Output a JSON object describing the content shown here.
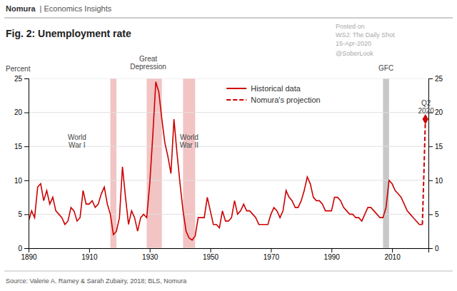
{
  "chart_data": {
    "type": "line",
    "title": "Fig. 2: Unemployment rate",
    "header": [
      "Nomura",
      "| Economics Insights"
    ],
    "ylabel": "Percent",
    "source": "Source: Valerie A. Ramey & Sarah Zubairy, 2018; BLS, Nomura",
    "watermark": [
      "Posted on",
      "WSJ: The Daily Shot",
      "15-Apr-2020",
      "@SoberLook"
    ],
    "xlim": [
      1890,
      2022
    ],
    "ylim": [
      0,
      25
    ],
    "y2lim": [
      0,
      25
    ],
    "xticks": [
      1890,
      1910,
      1930,
      1950,
      1970,
      1990,
      2010
    ],
    "yticks": [
      0,
      5,
      10,
      15,
      20,
      25
    ],
    "y2ticks": [
      0,
      5,
      10,
      15,
      20,
      25
    ],
    "grid": true,
    "legend": "top",
    "shaded_regions": [
      {
        "start": 1917,
        "end": 1919,
        "color": "#f2c4c4"
      },
      {
        "start": 1929,
        "end": 1934,
        "color": "#f2c4c4"
      },
      {
        "start": 1941,
        "end": 1945,
        "color": "#f2c4c4"
      },
      {
        "start": 2007,
        "end": 2009,
        "color": "#c8c8c8"
      }
    ],
    "annotations": [
      {
        "text": "World\nWar I",
        "x": 1906,
        "y": 14.5
      },
      {
        "text": "Great\nDepression",
        "x": 1929.5,
        "y": 26.0
      },
      {
        "text": "World\nWar II",
        "x": 1943,
        "y": 14.5
      },
      {
        "text": "GFC",
        "x": 2008,
        "y": 25.8
      },
      {
        "text": "Q2\n2020",
        "x": 2021.2,
        "y": 19.5
      }
    ],
    "series": [
      {
        "name": "Historical data",
        "color": "#cc0000",
        "line_style": "solid",
        "x": [
          1890,
          1891,
          1892,
          1893,
          1894,
          1895,
          1896,
          1897,
          1898,
          1899,
          1900,
          1901,
          1902,
          1903,
          1904,
          1905,
          1906,
          1907,
          1908,
          1909,
          1910,
          1911,
          1912,
          1913,
          1914,
          1915,
          1916,
          1917,
          1918,
          1919,
          1920,
          1921,
          1922,
          1923,
          1924,
          1925,
          1926,
          1927,
          1928,
          1929,
          1930,
          1931,
          1932,
          1933,
          1934,
          1935,
          1936,
          1937,
          1938,
          1939,
          1940,
          1941,
          1942,
          1943,
          1944,
          1945,
          1946,
          1947,
          1948,
          1949,
          1950,
          1951,
          1952,
          1953,
          1954,
          1955,
          1956,
          1957,
          1958,
          1959,
          1960,
          1961,
          1962,
          1963,
          1964,
          1965,
          1966,
          1967,
          1968,
          1969,
          1970,
          1971,
          1972,
          1973,
          1974,
          1975,
          1976,
          1977,
          1978,
          1979,
          1980,
          1981,
          1982,
          1983,
          1984,
          1985,
          1986,
          1987,
          1988,
          1989,
          1990,
          1991,
          1992,
          1993,
          1994,
          1995,
          1996,
          1997,
          1998,
          1999,
          2000,
          2001,
          2002,
          2003,
          2004,
          2005,
          2006,
          2007,
          2008,
          2009,
          2010,
          2011,
          2012,
          2013,
          2014,
          2015,
          2016,
          2017,
          2018,
          2019,
          2020
        ],
        "values": [
          4.0,
          5.5,
          4.5,
          9.0,
          9.5,
          7.0,
          8.5,
          6.5,
          7.5,
          5.5,
          5.0,
          4.5,
          3.5,
          4.0,
          6.0,
          5.5,
          4.0,
          4.5,
          8.5,
          6.5,
          6.5,
          7.0,
          6.0,
          6.5,
          8.0,
          9.0,
          6.5,
          5.0,
          2.0,
          2.5,
          4.5,
          12.0,
          7.5,
          3.5,
          5.5,
          4.5,
          2.5,
          4.5,
          5.0,
          4.5,
          9.5,
          16.5,
          24.5,
          23.0,
          19.0,
          15.5,
          13.5,
          11.0,
          19.0,
          14.0,
          9.5,
          5.5,
          2.5,
          1.5,
          1.2,
          1.8,
          4.5,
          4.5,
          4.5,
          7.5,
          5.5,
          3.5,
          3.5,
          3.0,
          5.5,
          4.0,
          4.0,
          4.5,
          7.0,
          5.0,
          5.5,
          6.5,
          5.5,
          5.5,
          5.0,
          4.5,
          3.5,
          3.5,
          3.5,
          3.5,
          5.0,
          6.0,
          5.5,
          4.5,
          5.5,
          8.5,
          7.5,
          7.0,
          6.0,
          6.0,
          7.0,
          8.5,
          10.5,
          9.5,
          7.5,
          7.0,
          7.0,
          6.5,
          5.5,
          5.5,
          5.5,
          7.5,
          7.5,
          7.0,
          6.0,
          5.5,
          5.0,
          5.0,
          4.5,
          4.5,
          4.0,
          5.0,
          6.0,
          6.0,
          5.5,
          5.0,
          4.5,
          4.5,
          6.0,
          10.0,
          9.5,
          8.5,
          8.0,
          7.5,
          6.5,
          5.5,
          5.0,
          4.5,
          4.0,
          3.5,
          3.5
        ]
      },
      {
        "name": "Nomura's projection",
        "color": "#cc0000",
        "line_style": "dashed",
        "marker": "diamond",
        "x": [
          2020,
          2020.5,
          2021.0
        ],
        "values": [
          3.5,
          11.0,
          19.0
        ]
      }
    ]
  }
}
